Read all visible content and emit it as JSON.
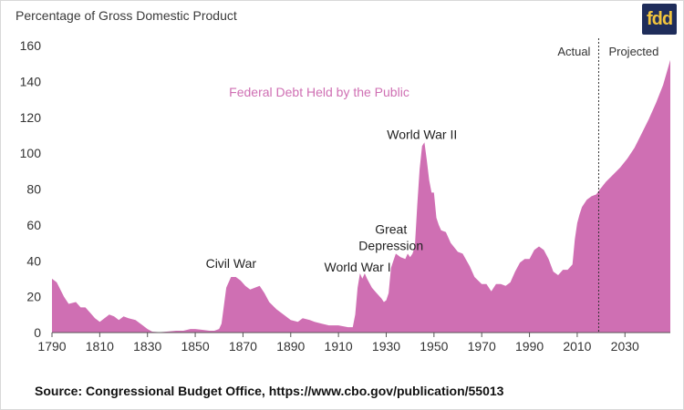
{
  "brand": {
    "logo_text": "fdd",
    "logo_bg": "#1f2d5a",
    "logo_fg": "#f2c53d"
  },
  "footer": {
    "source": "Source: Congressional Budget Office, https://www.cbo.gov/publication/55013"
  },
  "chart_data": {
    "type": "area",
    "title": "",
    "series_label": "Federal Debt Held by the Public",
    "ylabel": "Percentage of Gross Domestic Product",
    "xlabel": "",
    "xlim": [
      1790,
      2049
    ],
    "ylim": [
      0,
      160
    ],
    "grid": false,
    "x_ticks": [
      1790,
      1810,
      1830,
      1850,
      1870,
      1890,
      1910,
      1930,
      1950,
      1970,
      1990,
      2010,
      2030
    ],
    "y_ticks": [
      0,
      20,
      40,
      60,
      80,
      100,
      120,
      140,
      160
    ],
    "color": "#cf6fb3",
    "annotations": [
      {
        "text": "Civil War",
        "x": 1865,
        "y": 36
      },
      {
        "text": "World War I",
        "x": 1918,
        "y": 34
      },
      {
        "text": "Great",
        "x": 1932,
        "y": 55
      },
      {
        "text": "Depression",
        "x": 1932,
        "y": 46
      },
      {
        "text": "World War II",
        "x": 1945,
        "y": 108
      }
    ],
    "divider": {
      "x": 2019,
      "left_label": "Actual",
      "right_label": "Projected"
    },
    "series": [
      {
        "name": "Federal Debt Held by the Public",
        "points": [
          [
            1790,
            30
          ],
          [
            1792,
            28
          ],
          [
            1795,
            20
          ],
          [
            1797,
            16
          ],
          [
            1800,
            17
          ],
          [
            1802,
            14
          ],
          [
            1804,
            14
          ],
          [
            1806,
            11
          ],
          [
            1808,
            8
          ],
          [
            1810,
            6
          ],
          [
            1812,
            8
          ],
          [
            1814,
            10
          ],
          [
            1816,
            9
          ],
          [
            1818,
            7
          ],
          [
            1820,
            9
          ],
          [
            1822,
            8
          ],
          [
            1825,
            7
          ],
          [
            1828,
            4
          ],
          [
            1830,
            2
          ],
          [
            1832,
            0.5
          ],
          [
            1835,
            0.2
          ],
          [
            1838,
            0.5
          ],
          [
            1842,
            1
          ],
          [
            1845,
            1
          ],
          [
            1848,
            2
          ],
          [
            1850,
            2
          ],
          [
            1853,
            1.5
          ],
          [
            1856,
            1
          ],
          [
            1858,
            1
          ],
          [
            1860,
            2
          ],
          [
            1861,
            5
          ],
          [
            1862,
            15
          ],
          [
            1863,
            25
          ],
          [
            1865,
            31
          ],
          [
            1867,
            31
          ],
          [
            1869,
            29
          ],
          [
            1871,
            26
          ],
          [
            1873,
            24
          ],
          [
            1875,
            25
          ],
          [
            1877,
            26
          ],
          [
            1879,
            22
          ],
          [
            1881,
            17
          ],
          [
            1884,
            13
          ],
          [
            1887,
            10
          ],
          [
            1890,
            7
          ],
          [
            1893,
            6
          ],
          [
            1895,
            8
          ],
          [
            1898,
            7
          ],
          [
            1900,
            6
          ],
          [
            1903,
            5
          ],
          [
            1906,
            4
          ],
          [
            1910,
            4
          ],
          [
            1914,
            3
          ],
          [
            1916,
            3
          ],
          [
            1917,
            10
          ],
          [
            1918,
            25
          ],
          [
            1919,
            33
          ],
          [
            1920,
            30
          ],
          [
            1921,
            33
          ],
          [
            1922,
            30
          ],
          [
            1924,
            25
          ],
          [
            1926,
            22
          ],
          [
            1928,
            19
          ],
          [
            1929,
            17
          ],
          [
            1930,
            18
          ],
          [
            1931,
            22
          ],
          [
            1932,
            36
          ],
          [
            1933,
            40
          ],
          [
            1934,
            44
          ],
          [
            1936,
            42
          ],
          [
            1938,
            41
          ],
          [
            1939,
            44
          ],
          [
            1940,
            42
          ],
          [
            1941,
            44
          ],
          [
            1942,
            48
          ],
          [
            1943,
            71
          ],
          [
            1944,
            91
          ],
          [
            1945,
            104
          ],
          [
            1946,
            106
          ],
          [
            1947,
            96
          ],
          [
            1948,
            85
          ],
          [
            1949,
            78
          ],
          [
            1950,
            78
          ],
          [
            1951,
            64
          ],
          [
            1952,
            60
          ],
          [
            1953,
            57
          ],
          [
            1955,
            56
          ],
          [
            1957,
            50
          ],
          [
            1960,
            45
          ],
          [
            1962,
            44
          ],
          [
            1965,
            37
          ],
          [
            1967,
            31
          ],
          [
            1970,
            27
          ],
          [
            1972,
            27
          ],
          [
            1974,
            23
          ],
          [
            1976,
            27
          ],
          [
            1978,
            27
          ],
          [
            1980,
            26
          ],
          [
            1982,
            28
          ],
          [
            1984,
            34
          ],
          [
            1986,
            39
          ],
          [
            1988,
            41
          ],
          [
            1990,
            41
          ],
          [
            1992,
            46
          ],
          [
            1994,
            48
          ],
          [
            1996,
            46
          ],
          [
            1998,
            41
          ],
          [
            2000,
            34
          ],
          [
            2002,
            32
          ],
          [
            2004,
            35
          ],
          [
            2006,
            35
          ],
          [
            2008,
            38
          ],
          [
            2009,
            52
          ],
          [
            2010,
            61
          ],
          [
            2011,
            66
          ],
          [
            2012,
            70
          ],
          [
            2014,
            74
          ],
          [
            2016,
            76
          ],
          [
            2018,
            77
          ],
          [
            2019,
            79
          ],
          [
            2022,
            84
          ],
          [
            2025,
            88
          ],
          [
            2028,
            92
          ],
          [
            2031,
            97
          ],
          [
            2034,
            103
          ],
          [
            2037,
            111
          ],
          [
            2040,
            119
          ],
          [
            2043,
            128
          ],
          [
            2046,
            138
          ],
          [
            2049,
            152
          ]
        ]
      }
    ]
  }
}
